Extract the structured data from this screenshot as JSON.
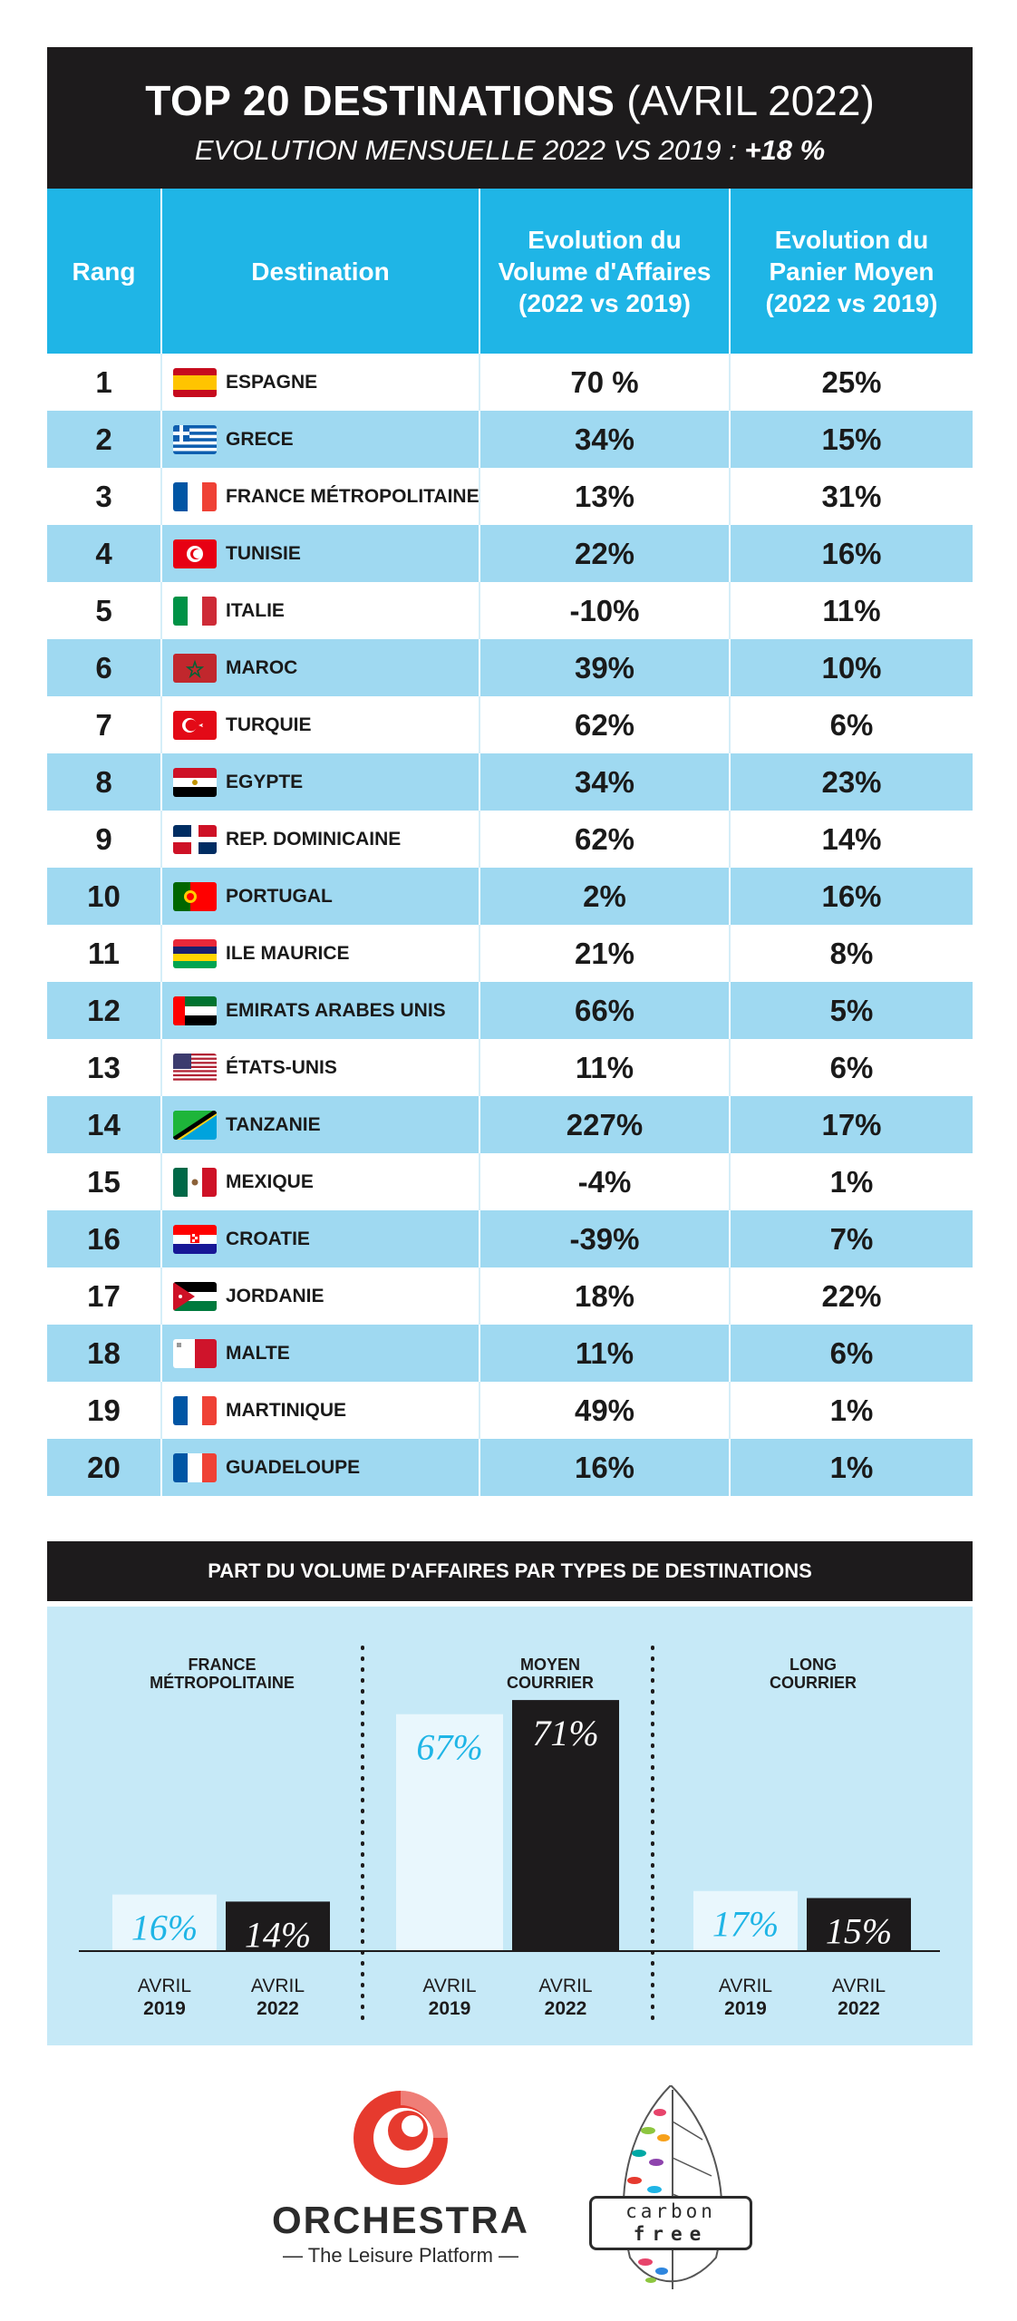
{
  "title": {
    "main": "TOP 20 DESTINATIONS",
    "date": "(AVRIL 2022)",
    "subtitle": "EVOLUTION MENSUELLE 2022 VS 2019 :",
    "subtitle_value": "+18 %"
  },
  "table": {
    "headers": {
      "rank": "Rang",
      "destination": "Destination",
      "volume": "Evolution du Volume d'Affaires (2022 vs 2019)",
      "panier": "Evolution du Panier Moyen (2022 vs 2019)"
    },
    "rows": [
      {
        "rank": "1",
        "name": "ESPAGNE",
        "flag": "spain",
        "volume": "70 %",
        "panier": "25%"
      },
      {
        "rank": "2",
        "name": "GRECE",
        "flag": "greece",
        "volume": "34%",
        "panier": "15%"
      },
      {
        "rank": "3",
        "name": "FRANCE MÉTROPOLITAINE",
        "flag": "france",
        "volume": "13%",
        "panier": "31%"
      },
      {
        "rank": "4",
        "name": "TUNISIE",
        "flag": "tunisia",
        "volume": "22%",
        "panier": "16%"
      },
      {
        "rank": "5",
        "name": "ITALIE",
        "flag": "italy",
        "volume": "-10%",
        "panier": "11%"
      },
      {
        "rank": "6",
        "name": "MAROC",
        "flag": "morocco",
        "volume": "39%",
        "panier": "10%"
      },
      {
        "rank": "7",
        "name": "TURQUIE",
        "flag": "turkey",
        "volume": "62%",
        "panier": "6%"
      },
      {
        "rank": "8",
        "name": "EGYPTE",
        "flag": "egypt",
        "volume": "34%",
        "panier": "23%"
      },
      {
        "rank": "9",
        "name": "REP. DOMINICAINE",
        "flag": "dominican-republic",
        "volume": "62%",
        "panier": "14%"
      },
      {
        "rank": "10",
        "name": "PORTUGAL",
        "flag": "portugal",
        "volume": "2%",
        "panier": "16%"
      },
      {
        "rank": "11",
        "name": "ILE MAURICE",
        "flag": "mauritius",
        "volume": "21%",
        "panier": "8%"
      },
      {
        "rank": "12",
        "name": "EMIRATS ARABES UNIS",
        "flag": "uae",
        "volume": "66%",
        "panier": "5%"
      },
      {
        "rank": "13",
        "name": "ÉTATS-UNIS",
        "flag": "usa",
        "volume": "11%",
        "panier": "6%"
      },
      {
        "rank": "14",
        "name": "TANZANIE",
        "flag": "tanzania",
        "volume": "227%",
        "panier": "17%"
      },
      {
        "rank": "15",
        "name": "MEXIQUE",
        "flag": "mexico",
        "volume": "-4%",
        "panier": "1%"
      },
      {
        "rank": "16",
        "name": "CROATIE",
        "flag": "croatia",
        "volume": "-39%",
        "panier": "7%"
      },
      {
        "rank": "17",
        "name": "JORDANIE",
        "flag": "jordan",
        "volume": "18%",
        "panier": "22%"
      },
      {
        "rank": "18",
        "name": "MALTE",
        "flag": "malta",
        "volume": "11%",
        "panier": "6%"
      },
      {
        "rank": "19",
        "name": "MARTINIQUE",
        "flag": "france",
        "volume": "49%",
        "panier": "1%"
      },
      {
        "rank": "20",
        "name": "GUADELOUPE",
        "flag": "france",
        "volume": "16%",
        "panier": "1%"
      }
    ]
  },
  "chart_data": {
    "type": "bar",
    "title": "PART DU VOLUME D'AFFAIRES PAR TYPES DE DESTINATIONS",
    "groups": [
      "FRANCE MÉTROPOLITAINE",
      "MOYEN COURRIER",
      "LONG COURRIER"
    ],
    "series": [
      {
        "name": "AVRIL 2019",
        "values": [
          16,
          67,
          17
        ],
        "labels": [
          "16%",
          "67%",
          "17%"
        ],
        "color": "#e9f7fd",
        "label_color": "#1fb5e6"
      },
      {
        "name": "AVRIL 2022",
        "values": [
          14,
          71,
          15
        ],
        "labels": [
          "14%",
          "71%",
          "15%"
        ],
        "color": "#1d1b1c",
        "label_color": "#ffffff"
      }
    ],
    "xlabels": [
      {
        "month": "AVRIL",
        "year": "2019"
      },
      {
        "month": "AVRIL",
        "year": "2022"
      }
    ],
    "ylim": [
      0,
      80
    ],
    "grid": false
  },
  "footer": {
    "orchestra_name": "ORCHESTRA",
    "orchestra_tagline": "— The Leisure Platform —",
    "carbon_line1": "carbon",
    "carbon_line2": "free"
  },
  "colors": {
    "accent_blue": "#1fb5e6",
    "light_row": "#9fd9f1",
    "chart_bg": "#c6e9f7",
    "dark": "#1d1b1c",
    "orchestra_red": "#e63a2e"
  }
}
